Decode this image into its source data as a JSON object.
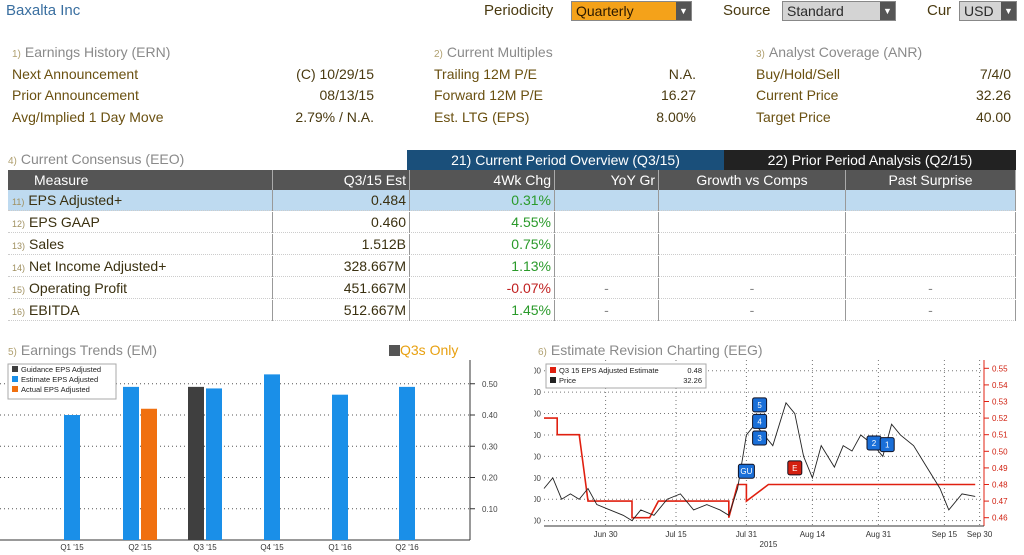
{
  "header": {
    "company": "Baxalta Inc",
    "periodicity_label": "Periodicity",
    "periodicity_value": "Quarterly",
    "source_label": "Source",
    "source_value": "Standard",
    "cur_label": "Cur",
    "cur_value": "USD"
  },
  "ern": {
    "num": "1)",
    "title": "Earnings History (ERN)",
    "rows": [
      {
        "label": "Next Announcement",
        "value": "(C)  10/29/15"
      },
      {
        "label": "Prior Announcement",
        "value": "08/13/15"
      },
      {
        "label": "Avg/Implied 1 Day Move",
        "value": "2.79% / N.A."
      }
    ]
  },
  "multiples": {
    "num": "2)",
    "title": "Current Multiples",
    "rows": [
      {
        "label": "Trailing 12M P/E",
        "value": "N.A."
      },
      {
        "label": "Forward 12M P/E",
        "value": "16.27"
      },
      {
        "label": "Est. LTG (EPS)",
        "value": "8.00%"
      }
    ]
  },
  "anr": {
    "num": "3)",
    "title": "Analyst Coverage (ANR)",
    "rows": [
      {
        "label": "Buy/Hold/Sell",
        "value": "7/4/0"
      },
      {
        "label": "Current Price",
        "value": "32.26"
      },
      {
        "label": "Target Price",
        "value": "40.00"
      }
    ]
  },
  "consensus": {
    "num": "4)",
    "title": "Current Consensus (EEO)",
    "tab_current": "21) Current Period Overview (Q3/15)",
    "tab_prior": "22) Prior Period Analysis (Q2/15)",
    "headers": [
      "Measure",
      "Q3/15 Est",
      "4Wk Chg",
      "YoY Gr",
      "Growth vs Comps",
      "Past Surprise"
    ],
    "rows": [
      {
        "num": "11)",
        "measure": "EPS Adjusted+",
        "est": "0.484",
        "chg": "0.31%",
        "yoy": "",
        "growth": "",
        "surprise": ""
      },
      {
        "num": "12)",
        "measure": "EPS GAAP",
        "est": "0.460",
        "chg": "4.55%",
        "yoy": "",
        "growth": "",
        "surprise": ""
      },
      {
        "num": "13)",
        "measure": "Sales",
        "est": "1.512B",
        "chg": "0.75%",
        "yoy": "",
        "growth": "",
        "surprise": ""
      },
      {
        "num": "14)",
        "measure": "Net Income Adjusted+",
        "est": "328.667M",
        "chg": "1.13%",
        "yoy": "",
        "growth": "",
        "surprise": ""
      },
      {
        "num": "15)",
        "measure": "Operating Profit",
        "est": "451.667M",
        "chg": "-0.07%",
        "yoy": "-",
        "growth": "-",
        "surprise": "-"
      },
      {
        "num": "16)",
        "measure": "EBITDA",
        "est": "512.667M",
        "chg": "1.45%",
        "yoy": "-",
        "growth": "-",
        "surprise": "-"
      }
    ]
  },
  "trends": {
    "num": "5)",
    "title": "Earnings Trends (EM)",
    "q3s_label": "Q3s Only"
  },
  "revision": {
    "num": "6)",
    "title": "Estimate Revision Charting (EEG)"
  },
  "colors": {
    "guidance": "#3f3f3f",
    "estimate": "#1a8fe8",
    "actual": "#f07010",
    "estimate_line": "#e02010",
    "price_line": "#222222"
  },
  "chart_data": [
    {
      "type": "bar",
      "title": "Earnings Trends (EM)",
      "categories": [
        "Q1 '15",
        "Q2 '15",
        "Q3 '15",
        "Q4 '15",
        "Q1 '16",
        "Q2 '16"
      ],
      "series": [
        {
          "name": "Guidance EPS Adjusted",
          "values": [
            null,
            null,
            0.49,
            null,
            null,
            null
          ]
        },
        {
          "name": "Estimate EPS Adjusted",
          "values": [
            0.4,
            0.49,
            0.485,
            0.53,
            0.465,
            0.49
          ]
        },
        {
          "name": "Actual EPS Adjusted",
          "values": [
            null,
            0.42,
            null,
            null,
            null,
            null
          ]
        }
      ],
      "y_ticks": [
        "0.10",
        "0.20",
        "0.30",
        "0.40",
        "0.50"
      ],
      "ylim": [
        0.0,
        0.56
      ],
      "legend": "top-left"
    },
    {
      "type": "line",
      "title": "Estimate Revision Charting (EEG)",
      "x_labels": [
        "Jun 30",
        "Jul 15",
        "Jul 31",
        "Aug 14",
        "Aug 31",
        "Sep 15",
        "Sep 30"
      ],
      "x_sublabel": "2015",
      "series": [
        {
          "name": "Q3 15 EPS Adjusted Estimate",
          "legend_value": "0.48",
          "axis": "right",
          "points": [
            [
              0,
              0.52
            ],
            [
              3,
              0.52
            ],
            [
              3,
              0.51
            ],
            [
              8,
              0.51
            ],
            [
              10,
              0.47
            ],
            [
              20,
              0.47
            ],
            [
              20,
              0.46
            ],
            [
              24,
              0.46
            ],
            [
              26,
              0.47
            ],
            [
              42,
              0.47
            ],
            [
              42,
              0.46
            ],
            [
              44,
              0.48
            ],
            [
              46,
              0.48
            ],
            [
              46,
              0.47
            ],
            [
              51,
              0.48
            ],
            [
              68,
              0.48
            ],
            [
              68,
              0.48
            ],
            [
              94,
              0.48
            ],
            [
              98,
              0.48
            ]
          ]
        },
        {
          "name": "Price",
          "legend_value": "32.26",
          "axis": "left",
          "points": [
            [
              0,
              33
            ],
            [
              2,
              34
            ],
            [
              4,
              32
            ],
            [
              6,
              32.5
            ],
            [
              8,
              32
            ],
            [
              10,
              33
            ],
            [
              12,
              31.5
            ],
            [
              15,
              31
            ],
            [
              18,
              30.5
            ],
            [
              20,
              30
            ],
            [
              22,
              31
            ],
            [
              25,
              30.5
            ],
            [
              28,
              32
            ],
            [
              31,
              32.5
            ],
            [
              34,
              31
            ],
            [
              37,
              31.5
            ],
            [
              40,
              31
            ],
            [
              42,
              30.5
            ],
            [
              44,
              33
            ],
            [
              46,
              38
            ],
            [
              48,
              39
            ],
            [
              50,
              38
            ],
            [
              52,
              37
            ],
            [
              55,
              41
            ],
            [
              57,
              40
            ],
            [
              59,
              36
            ],
            [
              61,
              34
            ],
            [
              63,
              37
            ],
            [
              66,
              35
            ],
            [
              68,
              37
            ],
            [
              70,
              36.5
            ],
            [
              72,
              38
            ],
            [
              75,
              37
            ],
            [
              77,
              36
            ],
            [
              79,
              39
            ],
            [
              81,
              38
            ],
            [
              84,
              37
            ],
            [
              87,
              35
            ],
            [
              90,
              33
            ],
            [
              92,
              31
            ],
            [
              95,
              32.5
            ],
            [
              98,
              32.26
            ]
          ]
        }
      ],
      "y_left_ticks": [
        "30.00",
        "32.00",
        "34.00",
        "36.00",
        "38.00",
        "40.00",
        "42.00",
        "44.00"
      ],
      "y_left_lim": [
        29.5,
        45
      ],
      "y_right_ticks": [
        "0.46",
        "0.47",
        "0.48",
        "0.49",
        "0.50",
        "0.51",
        "0.52",
        "0.53",
        "0.54",
        "0.55"
      ],
      "y_right_lim": [
        0.455,
        0.555
      ],
      "markers": [
        {
          "label": "5",
          "x": 49,
          "y": 0.528,
          "kind": "blue"
        },
        {
          "label": "4",
          "x": 49,
          "y": 0.518,
          "kind": "blue"
        },
        {
          "label": "3",
          "x": 49,
          "y": 0.508,
          "kind": "blue"
        },
        {
          "label": "GU",
          "x": 46,
          "y": 0.488,
          "kind": "blue"
        },
        {
          "label": "E",
          "x": 57,
          "y": 0.49,
          "kind": "red"
        },
        {
          "label": "2",
          "x": 75,
          "y": 0.505,
          "kind": "blue"
        },
        {
          "label": "1",
          "x": 78,
          "y": 0.504,
          "kind": "blue"
        }
      ],
      "legend": "top-left"
    }
  ]
}
